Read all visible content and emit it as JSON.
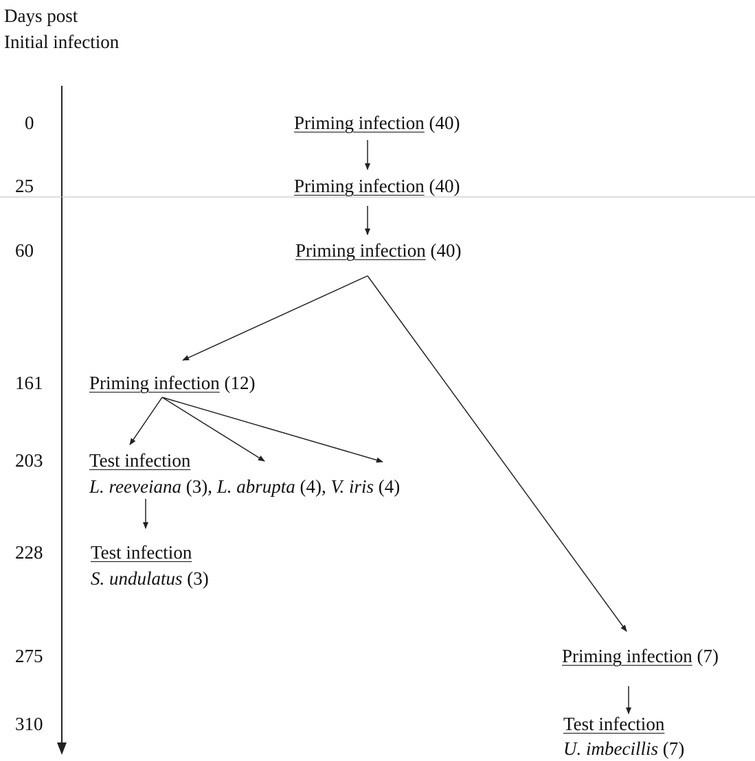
{
  "axis_title": {
    "line1": "Days post",
    "line2": "Initial infection"
  },
  "days": [
    "0",
    "25",
    "60",
    "161",
    "203",
    "228",
    "275",
    "310"
  ],
  "nodes": {
    "prime_0": {
      "label": "Priming infection",
      "count": "(40)"
    },
    "prime_25": {
      "label": "Priming infection",
      "count": "(40)"
    },
    "prime_60": {
      "label": "Priming infection",
      "count": "(40)"
    },
    "prime_161": {
      "label": "Priming infection",
      "count": "(12)"
    },
    "test_203": {
      "label": "Test infection",
      "species": [
        {
          "name": "L. reeveiana",
          "count": "(3)"
        },
        {
          "name": "L. abrupta",
          "count": "(4)"
        },
        {
          "name": "V. iris",
          "count": "(4)"
        }
      ]
    },
    "test_228": {
      "label": "Test infection",
      "species": [
        {
          "name": "S. undulatus",
          "count": "(3)"
        }
      ]
    },
    "prime_275": {
      "label": "Priming infection",
      "count": "(7)"
    },
    "test_310": {
      "label": "Test infection",
      "species": [
        {
          "name": "U. imbecillis",
          "count": "(7)"
        }
      ]
    }
  }
}
